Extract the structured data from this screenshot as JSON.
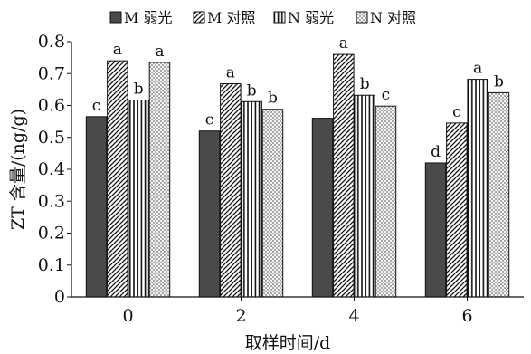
{
  "chart_data": {
    "type": "bar",
    "xlabel": "取样时间/d",
    "ylabel": "ZT 含量/(ng/g)",
    "categories": [
      "0",
      "2",
      "4",
      "6"
    ],
    "ylim": [
      0,
      0.8
    ],
    "yticks": [
      "0",
      "0.1",
      "0.2",
      "0.3",
      "0.4",
      "0.5",
      "0.6",
      "0.7",
      "0.8"
    ],
    "legend_position": "top",
    "series": [
      {
        "name": "M 弱光",
        "pattern": "solid-dark",
        "color": "#4a4a4a",
        "values": [
          0.565,
          0.52,
          0.56,
          0.42
        ],
        "letters": [
          "c",
          "c",
          "",
          "d"
        ]
      },
      {
        "name": "M 对照",
        "pattern": "diagonal-hatch",
        "color": "#111111",
        "values": [
          0.74,
          0.668,
          0.76,
          0.545
        ],
        "letters": [
          "a",
          "a",
          "a",
          "c"
        ]
      },
      {
        "name": "N 弱光",
        "pattern": "vertical-lines",
        "color": "#111111",
        "values": [
          0.617,
          0.612,
          0.632,
          0.682
        ],
        "letters": [
          "b",
          "b",
          "b",
          "a"
        ]
      },
      {
        "name": "N 对照",
        "pattern": "crosshatch",
        "color": "#555555",
        "values": [
          0.735,
          0.588,
          0.598,
          0.64
        ],
        "letters": [
          "a",
          "b",
          "c",
          "b"
        ]
      }
    ]
  }
}
